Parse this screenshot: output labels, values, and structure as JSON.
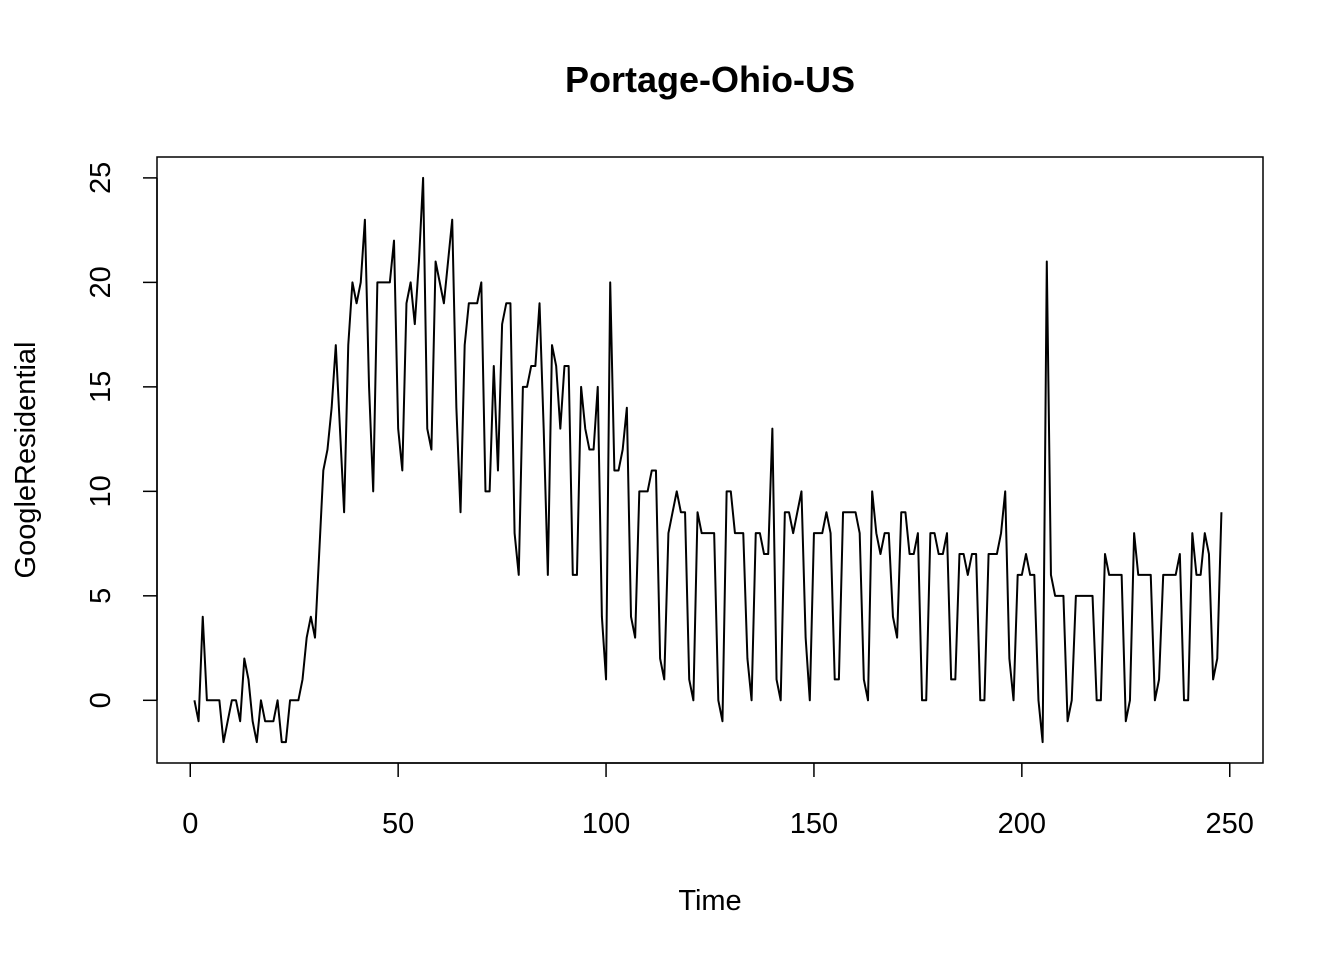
{
  "chart_data": {
    "type": "line",
    "title": "Portage-Ohio-US",
    "xlabel": "Time",
    "ylabel": "GoogleResidential",
    "xlim": [
      -8,
      258
    ],
    "ylim": [
      -3,
      26
    ],
    "xticks": [
      0,
      50,
      100,
      150,
      200,
      250
    ],
    "yticks": [
      0,
      5,
      10,
      15,
      20,
      25
    ],
    "grid": false,
    "line_color": "#000000",
    "series": [
      {
        "x_start": 1,
        "values": [
          0,
          -1,
          4,
          0,
          0,
          0,
          0,
          -2,
          -1,
          0,
          0,
          -1,
          2,
          1,
          -1,
          -2,
          0,
          -1,
          -1,
          -1,
          0,
          -2,
          -2,
          0,
          0,
          0,
          1,
          3,
          4,
          3,
          7,
          11,
          12,
          14,
          17,
          13,
          9,
          17,
          20,
          19,
          20,
          23,
          15,
          10,
          20,
          20,
          20,
          20,
          22,
          13,
          11,
          19,
          20,
          18,
          21,
          25,
          13,
          12,
          21,
          20,
          19,
          21,
          23,
          14,
          9,
          17,
          19,
          19,
          19,
          20,
          10,
          10,
          16,
          11,
          18,
          19,
          19,
          8,
          6,
          15,
          15,
          16,
          16,
          19,
          13,
          6,
          17,
          16,
          13,
          16,
          16,
          6,
          6,
          15,
          13,
          12,
          12,
          15,
          4,
          1,
          20,
          11,
          11,
          12,
          14,
          4,
          3,
          10,
          10,
          10,
          11,
          11,
          2,
          1,
          8,
          9,
          10,
          9,
          9,
          1,
          0,
          9,
          8,
          8,
          8,
          8,
          0,
          -1,
          10,
          10,
          8,
          8,
          8,
          2,
          0,
          8,
          8,
          7,
          7,
          13,
          1,
          0,
          9,
          9,
          8,
          9,
          10,
          3,
          0,
          8,
          8,
          8,
          9,
          8,
          1,
          1,
          9,
          9,
          9,
          9,
          8,
          1,
          0,
          10,
          8,
          7,
          8,
          8,
          4,
          3,
          9,
          9,
          7,
          7,
          8,
          0,
          0,
          8,
          8,
          7,
          7,
          8,
          1,
          1,
          7,
          7,
          6,
          7,
          7,
          0,
          0,
          7,
          7,
          7,
          8,
          10,
          2,
          0,
          6,
          6,
          7,
          6,
          6,
          0,
          -2,
          21,
          6,
          5,
          5,
          5,
          -1,
          0,
          5,
          5,
          5,
          5,
          5,
          0,
          0,
          7,
          6,
          6,
          6,
          6,
          -1,
          0,
          8,
          6,
          6,
          6,
          6,
          0,
          1,
          6,
          6,
          6,
          6,
          7,
          0,
          0,
          8,
          6,
          6,
          8,
          7,
          1,
          2,
          9
        ]
      }
    ]
  }
}
